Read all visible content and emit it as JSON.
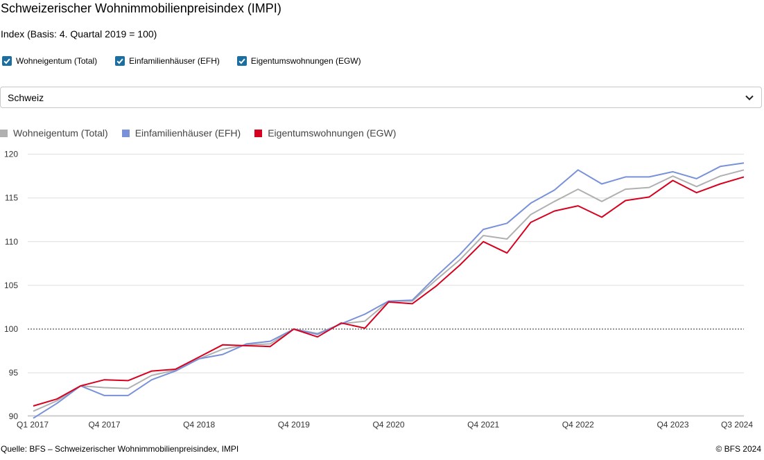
{
  "title": "Schweizerischer Wohnimmobilienpreisindex (IMPI)",
  "subtitle": "Index (Basis: 4. Quartal 2019 = 100)",
  "checkboxes": [
    {
      "label": "Wohneigentum (Total)",
      "checked": true
    },
    {
      "label": "Einfamilienhäuser (EFH)",
      "checked": true
    },
    {
      "label": "Eigentumswohnungen (EGW)",
      "checked": true
    }
  ],
  "region_select": {
    "value": "Schweiz",
    "icon": "chevron-down-icon"
  },
  "footer": {
    "source": "Quelle: BFS – Schweizerischer Wohnimmobilienpreisindex, IMPI",
    "copyright": "© BFS 2024"
  },
  "colors": {
    "checkbox": "#1a6ea0",
    "total": "#b0b0b0",
    "efh": "#7891d9",
    "egw": "#d7001e",
    "grid": "#dddddd"
  },
  "chart_data": {
    "type": "line",
    "x": [
      "Q1 2017",
      "Q2 2017",
      "Q3 2017",
      "Q4 2017",
      "Q1 2018",
      "Q2 2018",
      "Q3 2018",
      "Q4 2018",
      "Q1 2019",
      "Q2 2019",
      "Q3 2019",
      "Q4 2019",
      "Q1 2020",
      "Q2 2020",
      "Q3 2020",
      "Q4 2020",
      "Q1 2021",
      "Q2 2021",
      "Q3 2021",
      "Q4 2021",
      "Q1 2022",
      "Q2 2022",
      "Q3 2022",
      "Q4 2022",
      "Q1 2023",
      "Q2 2023",
      "Q3 2023",
      "Q4 2023",
      "Q1 2024",
      "Q2 2024",
      "Q3 2024"
    ],
    "x_tick_labels": [
      "Q1 2017",
      "Q4 2017",
      "Q4 2018",
      "Q4 2019",
      "Q4 2020",
      "Q4 2021",
      "Q4 2022",
      "Q4 2023",
      "Q3 2024"
    ],
    "y_ticks": [
      90,
      95,
      100,
      105,
      110,
      115,
      120
    ],
    "ylim": [
      89.3,
      121
    ],
    "reference_line": 100,
    "legend_position": "top-left",
    "grid": true,
    "series": [
      {
        "name": "Wohneigentum (Total)",
        "color": "#b0b0b0",
        "values": [
          90.6,
          91.8,
          93.5,
          93.3,
          93.2,
          94.7,
          95.3,
          96.6,
          97.7,
          98.2,
          98.3,
          100.0,
          99.5,
          100.6,
          100.9,
          103.2,
          103.2,
          105.6,
          107.9,
          110.7,
          110.3,
          113.1,
          114.6,
          116.0,
          114.6,
          116.0,
          116.2,
          117.5,
          116.3,
          117.5,
          118.2
        ]
      },
      {
        "name": "Einfamilienhäuser (EFH)",
        "color": "#7891d9",
        "values": [
          89.8,
          91.5,
          93.5,
          92.4,
          92.4,
          94.2,
          95.2,
          96.6,
          97.1,
          98.3,
          98.6,
          100.0,
          99.4,
          100.6,
          101.7,
          103.2,
          103.3,
          106.0,
          108.5,
          111.4,
          112.1,
          114.4,
          115.9,
          118.2,
          116.6,
          117.4,
          117.4,
          118.0,
          117.2,
          118.6,
          119.0
        ]
      },
      {
        "name": "Eigentumswohnungen (EGW)",
        "color": "#d7001e",
        "values": [
          91.2,
          92.0,
          93.5,
          94.2,
          94.1,
          95.2,
          95.4,
          96.8,
          98.2,
          98.1,
          98.0,
          100.0,
          99.1,
          100.7,
          100.1,
          103.1,
          102.9,
          104.9,
          107.3,
          110.0,
          108.7,
          112.2,
          113.5,
          114.1,
          112.8,
          114.7,
          115.1,
          117.0,
          115.6,
          116.6,
          117.4
        ]
      }
    ]
  }
}
